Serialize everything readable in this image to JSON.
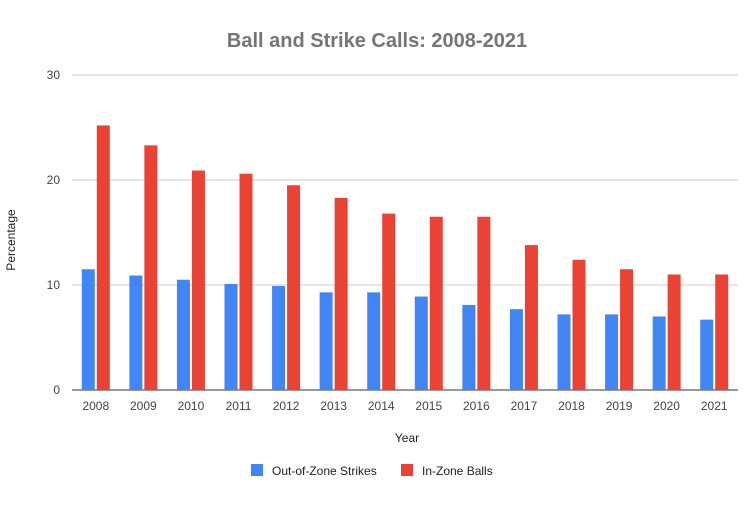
{
  "chart_data": {
    "type": "bar",
    "title": "Ball and Strike Calls: 2008-2021",
    "xlabel": "Year",
    "ylabel": "Percentage",
    "ylim": [
      0,
      30
    ],
    "yticks": [
      "0",
      "10",
      "20",
      "30"
    ],
    "grid": true,
    "legend_position": "bottom",
    "categories": [
      "2008",
      "2009",
      "2010",
      "2011",
      "2012",
      "2013",
      "2014",
      "2015",
      "2016",
      "2017",
      "2018",
      "2019",
      "2020",
      "2021"
    ],
    "series": [
      {
        "name": "Out-of-Zone Strikes",
        "color": "#4285F4",
        "values": [
          11.5,
          10.9,
          10.5,
          10.1,
          9.9,
          9.3,
          9.3,
          8.9,
          8.1,
          7.7,
          7.2,
          7.2,
          7.0,
          6.7
        ]
      },
      {
        "name": "In-Zone Balls",
        "color": "#EA4335",
        "values": [
          25.2,
          23.3,
          20.9,
          20.6,
          19.5,
          18.3,
          16.8,
          16.5,
          16.5,
          13.8,
          12.4,
          11.5,
          11.0,
          11.0
        ]
      }
    ]
  }
}
